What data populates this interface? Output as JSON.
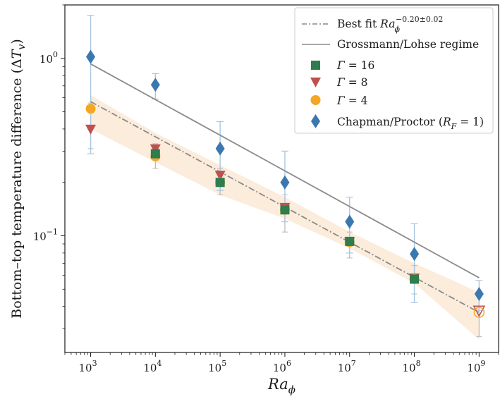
{
  "chart_data": {
    "type": "scatter",
    "xlabel": {
      "main": "Ra",
      "sub": "ϕ"
    },
    "ylabel": {
      "main": "Bottom–top temperature difference (",
      "delta": "Δ",
      "var": "T",
      "sub": "v",
      "close": ")"
    },
    "x_scale": "log",
    "y_scale": "log",
    "xlim": [
      400,
      2000000000
    ],
    "ylim": [
      0.022,
      2.0
    ],
    "x_ticks": [
      {
        "value": 1000,
        "mantissa": "10",
        "exp": "3"
      },
      {
        "value": 10000,
        "mantissa": "10",
        "exp": "4"
      },
      {
        "value": 100000,
        "mantissa": "10",
        "exp": "5"
      },
      {
        "value": 1000000,
        "mantissa": "10",
        "exp": "6"
      },
      {
        "value": 10000000,
        "mantissa": "10",
        "exp": "7"
      },
      {
        "value": 100000000,
        "mantissa": "10",
        "exp": "8"
      },
      {
        "value": 1000000000,
        "mantissa": "10",
        "exp": "9"
      }
    ],
    "y_ticks": [
      {
        "value": 1,
        "mantissa": "10",
        "exp": "0"
      },
      {
        "value": 0.1,
        "mantissa": "10",
        "exp": "−1"
      }
    ],
    "grid": false,
    "legend_position": "top-right",
    "legend": {
      "best_fit": {
        "prefix": "Best fit ",
        "base": "Ra",
        "sub": "ϕ",
        "exp": "−0.20±0.02"
      },
      "gl_label": "Grossmann/Lohse regime",
      "g16": {
        "sym": "Γ",
        "rest": " = 16"
      },
      "g8": {
        "sym": "Γ",
        "rest": " = 8"
      },
      "g4": {
        "sym": "Γ",
        "rest": " = 4"
      },
      "cp": {
        "prefix": "Chapman/Proctor (",
        "var": "R",
        "sub": "F",
        "rest": " = 1)"
      }
    },
    "lines": {
      "best_fit": {
        "x": [
          1000,
          1000000000
        ],
        "y": [
          0.57,
          0.037
        ]
      },
      "grossmann_lohse": {
        "x": [
          1000,
          1000000000
        ],
        "y": [
          0.93,
          0.058
        ]
      }
    },
    "band": {
      "x": [
        1000,
        10000,
        100000,
        1000000,
        10000000,
        100000000,
        1000000000
      ],
      "low": [
        0.4,
        0.26,
        0.17,
        0.125,
        0.085,
        0.054,
        0.026
      ],
      "high": [
        0.62,
        0.38,
        0.25,
        0.165,
        0.105,
        0.07,
        0.048
      ]
    },
    "series": [
      {
        "name": "Γ = 16",
        "marker": "square",
        "color": "#2e7d4f",
        "points": [
          {
            "x": 10000,
            "y": 0.29
          },
          {
            "x": 100000,
            "y": 0.2
          },
          {
            "x": 1000000,
            "y": 0.14
          },
          {
            "x": 10000000,
            "y": 0.093
          },
          {
            "x": 100000000,
            "y": 0.057
          }
        ]
      },
      {
        "name": "Γ = 8",
        "marker": "triangle-down",
        "color": "#c0504d",
        "points": [
          {
            "x": 1000,
            "y": 0.4
          },
          {
            "x": 10000,
            "y": 0.31
          },
          {
            "x": 100000,
            "y": 0.22
          },
          {
            "x": 1000000,
            "y": 0.145
          },
          {
            "x": 10000000,
            "y": 0.093
          },
          {
            "x": 100000000,
            "y": 0.058
          },
          {
            "x": 1000000000,
            "y": 0.038
          }
        ]
      },
      {
        "name": "Γ = 4",
        "marker": "circle",
        "color": "#f5a623",
        "points": [
          {
            "x": 1000,
            "y": 0.52
          },
          {
            "x": 10000,
            "y": 0.28
          },
          {
            "x": 100000,
            "y": 0.2
          },
          {
            "x": 1000000,
            "y": 0.14
          },
          {
            "x": 10000000,
            "y": 0.092
          },
          {
            "x": 100000000,
            "y": 0.057
          },
          {
            "x": 1000000000,
            "y": 0.037
          }
        ]
      },
      {
        "name": "Chapman/Proctor (RF = 1)",
        "marker": "diamond",
        "color": "#3b78b0",
        "points": [
          {
            "x": 1000,
            "y": 1.02,
            "err_low": 0.29,
            "err_high": 1.75
          },
          {
            "x": 10000,
            "y": 0.71,
            "err_low": 0.59,
            "err_high": 0.82
          },
          {
            "x": 100000,
            "y": 0.31,
            "err_low": 0.18,
            "err_high": 0.44
          },
          {
            "x": 1000000,
            "y": 0.2,
            "err_low": 0.12,
            "err_high": 0.3
          },
          {
            "x": 10000000,
            "y": 0.12,
            "err_low": 0.08,
            "err_high": 0.165
          },
          {
            "x": 100000000,
            "y": 0.079,
            "err_low": 0.042,
            "err_high": 0.117
          },
          {
            "x": 1000000000,
            "y": 0.047,
            "err_low": 0.038,
            "err_high": 0.056
          }
        ]
      }
    ],
    "gamma_error_bars": [
      {
        "x": 1000,
        "low": 0.31,
        "high": 0.56
      },
      {
        "x": 10000,
        "low": 0.24,
        "high": 0.33
      },
      {
        "x": 100000,
        "low": 0.17,
        "high": 0.24
      },
      {
        "x": 1000000,
        "low": 0.105,
        "high": 0.17
      },
      {
        "x": 10000000,
        "low": 0.075,
        "high": 0.105
      },
      {
        "x": 100000000,
        "low": 0.047,
        "high": 0.068
      },
      {
        "x": 1000000000,
        "low": 0.027,
        "high": 0.047
      }
    ],
    "colors": {
      "axis": "#1a1a1a",
      "fit_line": "#8a8a8a",
      "gl_line": "#8a8a8a",
      "band": "#f4c99a",
      "errbar": "#a9c7e3",
      "gamma_errbar": "#b8b8b8"
    }
  }
}
